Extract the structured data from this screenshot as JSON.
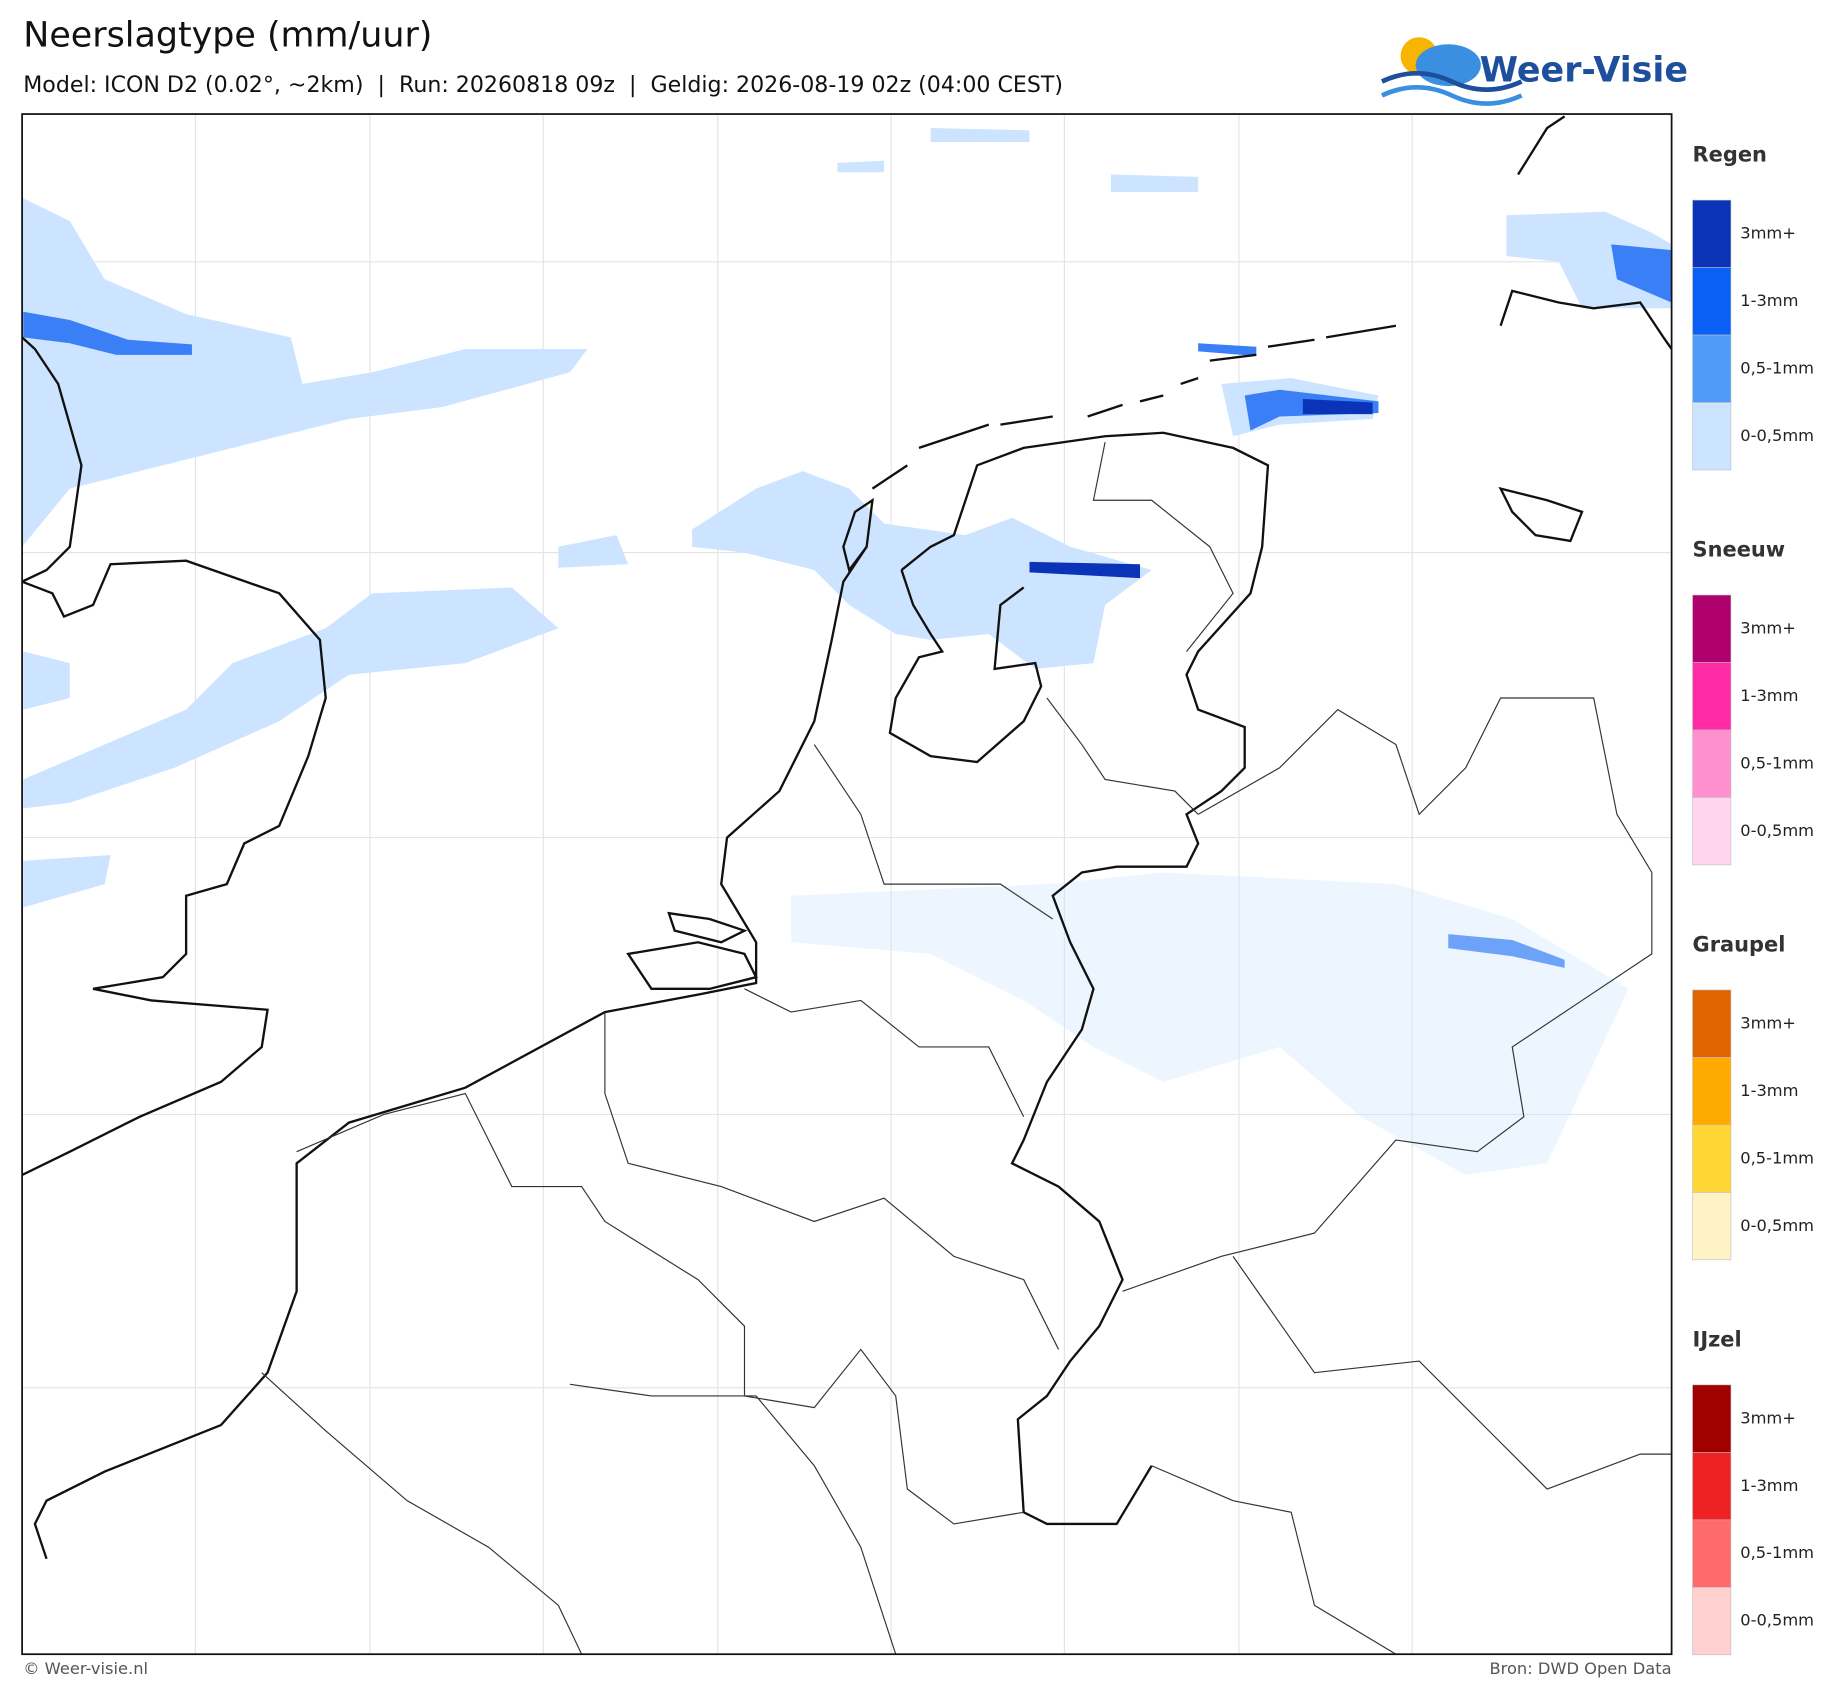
{
  "header": {
    "title": "Neerslagtype (mm/uur)",
    "subtitle": "Model: ICON D2 (0.02°, ~2km)  |  Run: 20260818 09z  |  Geldig: 2026-08-19 02z (04:00 CEST)",
    "logo": "Weer-Visie"
  },
  "legend": [
    {
      "title": "Regen",
      "items": [
        {
          "label": "3mm+",
          "color": "#0a33b8"
        },
        {
          "label": "1-3mm",
          "color": "#0a5ff5"
        },
        {
          "label": "0,5-1mm",
          "color": "#4f9cf8"
        },
        {
          "label": "0-0,5mm",
          "color": "#cce4ff"
        }
      ]
    },
    {
      "title": "Sneeuw",
      "items": [
        {
          "label": "3mm+",
          "color": "#b0006e"
        },
        {
          "label": "1-3mm",
          "color": "#ff2aa6"
        },
        {
          "label": "0,5-1mm",
          "color": "#ff8fcf"
        },
        {
          "label": "0-0,5mm",
          "color": "#ffd6ee"
        }
      ]
    },
    {
      "title": "Graupel",
      "items": [
        {
          "label": "3mm+",
          "color": "#e06400"
        },
        {
          "label": "1-3mm",
          "color": "#ffaa00"
        },
        {
          "label": "0,5-1mm",
          "color": "#ffd633"
        },
        {
          "label": "0-0,5mm",
          "color": "#fff2c4"
        }
      ]
    },
    {
      "title": "IJzel",
      "items": [
        {
          "label": "3mm+",
          "color": "#a00000"
        },
        {
          "label": "1-3mm",
          "color": "#ee2222"
        },
        {
          "label": "0,5-1mm",
          "color": "#ff6b6b"
        },
        {
          "label": "0-0,5mm",
          "color": "#ffd0d0"
        }
      ]
    }
  ],
  "footer": {
    "left": "© Weer-visie.nl",
    "right": "Bron: DWD Open Data"
  }
}
